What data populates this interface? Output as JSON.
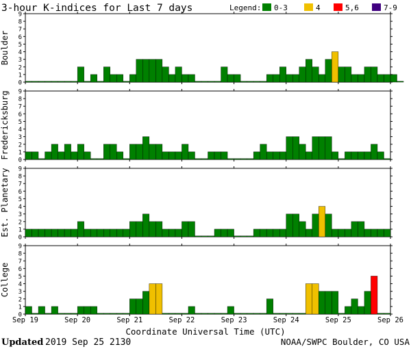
{
  "header": {
    "title": "3-hour K-indices for Last 7 days",
    "legend_title": "Legend:",
    "legend": [
      {
        "label": "0-3",
        "color": "#008000"
      },
      {
        "label": "4",
        "color": "#f0c000"
      },
      {
        "label": "5,6",
        "color": "#ff0000"
      },
      {
        "label": "7-9",
        "color": "#400080"
      }
    ]
  },
  "footer": {
    "xlabel": "Coordinate Universal Time (UTC)",
    "updated_label": "Updated",
    "updated_value": "2019 Sep 25 2130",
    "credit": "NOAA/SWPC Boulder, CO USA"
  },
  "chart_data": {
    "type": "bar",
    "x_ticks": [
      "Sep 19",
      "Sep 20",
      "Sep 21",
      "Sep 22",
      "Sep 23",
      "Sep 24",
      "Sep 25",
      "Sep 26"
    ],
    "interval_hours": 3,
    "y_ticks": [
      0,
      1,
      2,
      3,
      4,
      5,
      6,
      7,
      8,
      9
    ],
    "ylim": [
      0,
      9
    ],
    "grid": false,
    "color_bins": [
      {
        "min": 0,
        "max": 3,
        "color": "#008000"
      },
      {
        "min": 4,
        "max": 4,
        "color": "#f0c000"
      },
      {
        "min": 5,
        "max": 6,
        "color": "#ff0000"
      },
      {
        "min": 7,
        "max": 9,
        "color": "#400080"
      }
    ],
    "panels": [
      {
        "name": "Boulder",
        "values": [
          0,
          0,
          0,
          0,
          0,
          0,
          0,
          0,
          2,
          0,
          1,
          0,
          2,
          1,
          1,
          0,
          1,
          3,
          3,
          3,
          3,
          2,
          1,
          2,
          1,
          1,
          0,
          0,
          0,
          0,
          2,
          1,
          1,
          0,
          0,
          0,
          0,
          1,
          1,
          2,
          1,
          1,
          2,
          3,
          2,
          1,
          3,
          4,
          2,
          2,
          1,
          1,
          2,
          2,
          1,
          1,
          1,
          0
        ]
      },
      {
        "name": "Fredericksburg",
        "values": [
          1,
          1,
          0,
          1,
          2,
          1,
          2,
          1,
          2,
          1,
          0,
          0,
          2,
          2,
          1,
          0,
          2,
          2,
          3,
          2,
          2,
          1,
          1,
          1,
          2,
          1,
          0,
          0,
          1,
          1,
          1,
          0,
          0,
          0,
          0,
          1,
          2,
          1,
          1,
          1,
          3,
          3,
          2,
          1,
          3,
          3,
          3,
          1,
          0,
          1,
          1,
          1,
          1,
          2,
          1,
          0
        ]
      },
      {
        "name": "Est. Planetary",
        "values": [
          1,
          1,
          1,
          1,
          1,
          1,
          1,
          1,
          2,
          1,
          1,
          1,
          1,
          1,
          1,
          1,
          2,
          2,
          3,
          2,
          2,
          1,
          1,
          1,
          2,
          2,
          0,
          0,
          0,
          1,
          1,
          1,
          0,
          0,
          0,
          1,
          1,
          1,
          1,
          1,
          3,
          3,
          2,
          1,
          3,
          4,
          3,
          1,
          1,
          1,
          2,
          2,
          1,
          1,
          1,
          1
        ]
      },
      {
        "name": "College",
        "values": [
          1,
          0,
          1,
          0,
          1,
          0,
          0,
          0,
          1,
          1,
          1,
          0,
          0,
          0,
          0,
          0,
          2,
          2,
          3,
          4,
          4,
          0,
          0,
          0,
          0,
          1,
          0,
          0,
          0,
          0,
          0,
          1,
          0,
          0,
          0,
          0,
          0,
          2,
          0,
          0,
          0,
          0,
          0,
          4,
          4,
          3,
          3,
          3,
          0,
          1,
          2,
          1,
          3,
          5,
          0,
          0
        ]
      }
    ]
  }
}
